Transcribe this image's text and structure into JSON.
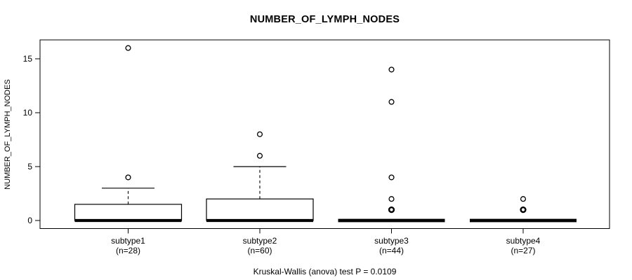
{
  "page": {
    "background": "#ffffff"
  },
  "chart_data": {
    "type": "boxplot",
    "title": "NUMBER_OF_LYMPH_NODES",
    "ylabel": "NUMBER_OF_LYMPH_NODES",
    "xlabel": "",
    "caption": "Kruskal-Wallis (anova) test P = 0.0109",
    "yticks": [
      0,
      5,
      10,
      15
    ],
    "ylim": [
      -0.64,
      16.64
    ],
    "grid": false,
    "legend": null,
    "colors": {
      "foreground": "#000000",
      "box_fill": "#ffffff"
    },
    "groups": [
      {
        "label": "subtype1",
        "n_label": "(n=28)",
        "q1": 0,
        "median": 0,
        "q3": 1.5,
        "whisker_low": 0,
        "whisker_high": 3,
        "outliers": [
          4,
          16
        ]
      },
      {
        "label": "subtype2",
        "n_label": "(n=60)",
        "q1": 0,
        "median": 0,
        "q3": 2,
        "whisker_low": 0,
        "whisker_high": 5,
        "outliers": [
          6,
          8
        ]
      },
      {
        "label": "subtype3",
        "n_label": "(n=44)",
        "q1": 0,
        "median": 0,
        "q3": 0,
        "whisker_low": 0,
        "whisker_high": 0,
        "outliers": [
          1,
          1,
          2,
          4,
          11,
          14
        ]
      },
      {
        "label": "subtype4",
        "n_label": "(n=27)",
        "q1": 0,
        "median": 0,
        "q3": 0,
        "whisker_low": 0,
        "whisker_high": 0,
        "outliers": [
          1,
          1,
          2
        ]
      }
    ]
  }
}
